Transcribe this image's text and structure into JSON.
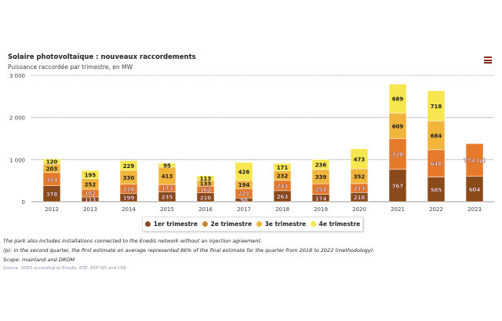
{
  "header": {
    "title": "Solaire photovoltaïque : nouveaux raccordements",
    "subtitle": "Puissance raccordée par trimestre, en MW",
    "menu_icon": "hamburger-icon"
  },
  "chart_data": {
    "type": "bar",
    "stacked": true,
    "title": "Solaire photovoltaïque : nouveaux raccordements",
    "subtitle": "Puissance raccordée par trimestre, en MW",
    "xlabel": "",
    "ylabel": "MW",
    "ylim": [
      0,
      3000
    ],
    "yticks": [
      0,
      1000,
      2000,
      3000
    ],
    "ytick_labels": [
      "0",
      "1 000",
      "2 000",
      "3 000"
    ],
    "grid": true,
    "legend_position": "bottom",
    "categories": [
      "2012",
      "2013",
      "2014",
      "2015",
      "2016",
      "2017",
      "2018",
      "2019",
      "2020",
      "2021",
      "2022",
      "2023"
    ],
    "series": [
      {
        "name": "1er trimestre",
        "color": "#8a4a1a",
        "values": [
          378,
          113,
          199,
          235,
          210,
          90,
          263,
          174,
          218,
          767,
          585,
          604
        ]
      },
      {
        "name": "2e trimestre",
        "color": "#e57a2a",
        "values": [
          314,
          182,
          218,
          173,
          162,
          221,
          243,
          251,
          213,
          728,
          648,
          774
        ]
      },
      {
        "name": "3e trimestre",
        "color": "#f2b53c",
        "values": [
          203,
          252,
          330,
          413,
          133,
          194,
          232,
          339,
          352,
          609,
          684,
          null
        ]
      },
      {
        "name": "4e trimestre",
        "color": "#f7e650",
        "values": [
          120,
          195,
          229,
          95,
          113,
          426,
          171,
          236,
          473,
          689,
          718,
          null
        ]
      }
    ],
    "annotations": [
      {
        "category": "2023",
        "series": "2e trimestre",
        "label": "774 (p)"
      }
    ]
  },
  "notes": [
    "The park also includes installations connected to the Enedis network without an injection agreement.",
    "(p): in the second quarter, the first estimate on average represented 86% of the final estimate for the quarter from 2018 to 2022 (methodology).",
    "Scope: mainland and DROM"
  ],
  "source": "Source: SDES according to Enedis, RTE, EDF-SEI and CRE"
}
